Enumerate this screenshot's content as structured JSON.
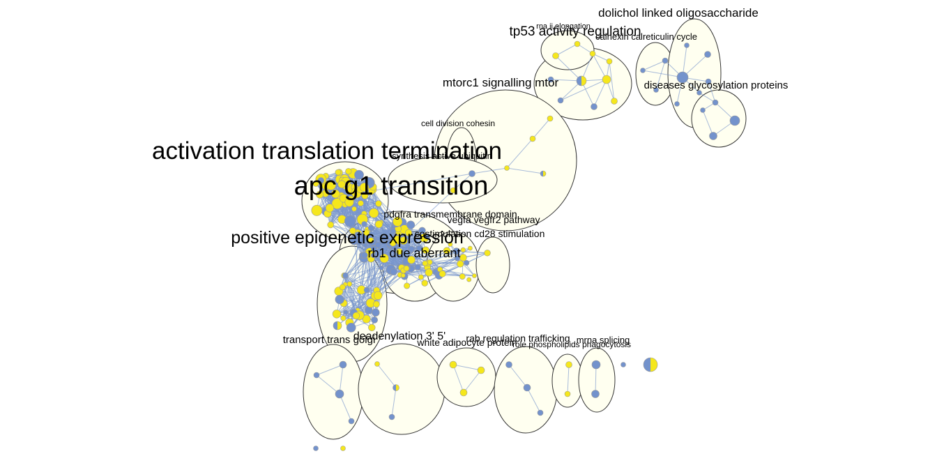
{
  "colors": {
    "yellow": "#f5e71c",
    "blue": "#7392cc",
    "cluster_fill": "#fffff0",
    "cluster_stroke": "#333333",
    "edge": "#7a96cc"
  },
  "labels": {
    "dolichol_linked": "dolichol linked oligosaccharide",
    "rna_ii_elongation": "rna ii elongation",
    "tp53_activity": "tp53 activity regulation",
    "calnexin_calreticulin": "calnexin calreticulin cycle",
    "mtorc1_signalling": "mtorc1 signalling mtor",
    "diseases_glycosylation": "diseases glycosylation proteins",
    "cell_division_cohesin": "cell division cohesin",
    "activation_translation": "activation translation termination",
    "synthesis_active": "synthesis active ubiquitin",
    "apc_g1": "apc g1 transition",
    "pdgfra_transmembrane": "pdgfra transmembrane domain",
    "vegfa_vegfr2": "vegfa vegfr2 pathway",
    "costimulation_cd28": "costimulation cd28 stimulation",
    "positive_epigenetic": "positive epigenetic expression",
    "rb1_due": "rb1 due aberrant",
    "deadenylation": "deadenylation 3' 5'",
    "transport_trans_golgi": "transport trans golgi",
    "rab_regulation": "rab regulation trafficking",
    "white_adipocyte": "white adipocyte protein",
    "mrna_splicing": "mrna splicing",
    "role_phospholipids": "role phospholipids phagocytosis"
  }
}
